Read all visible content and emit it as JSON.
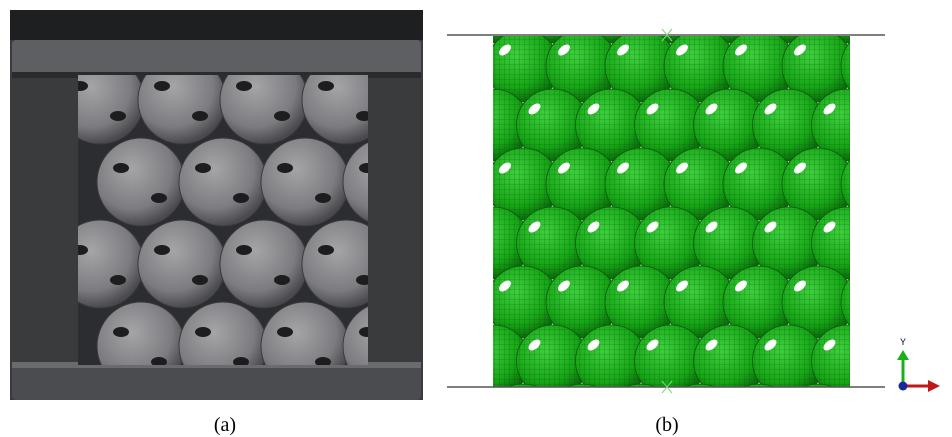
{
  "panels": [
    {
      "label": "(a)"
    },
    {
      "label": "(b)"
    }
  ],
  "triad": {
    "y_label": "Y"
  }
}
